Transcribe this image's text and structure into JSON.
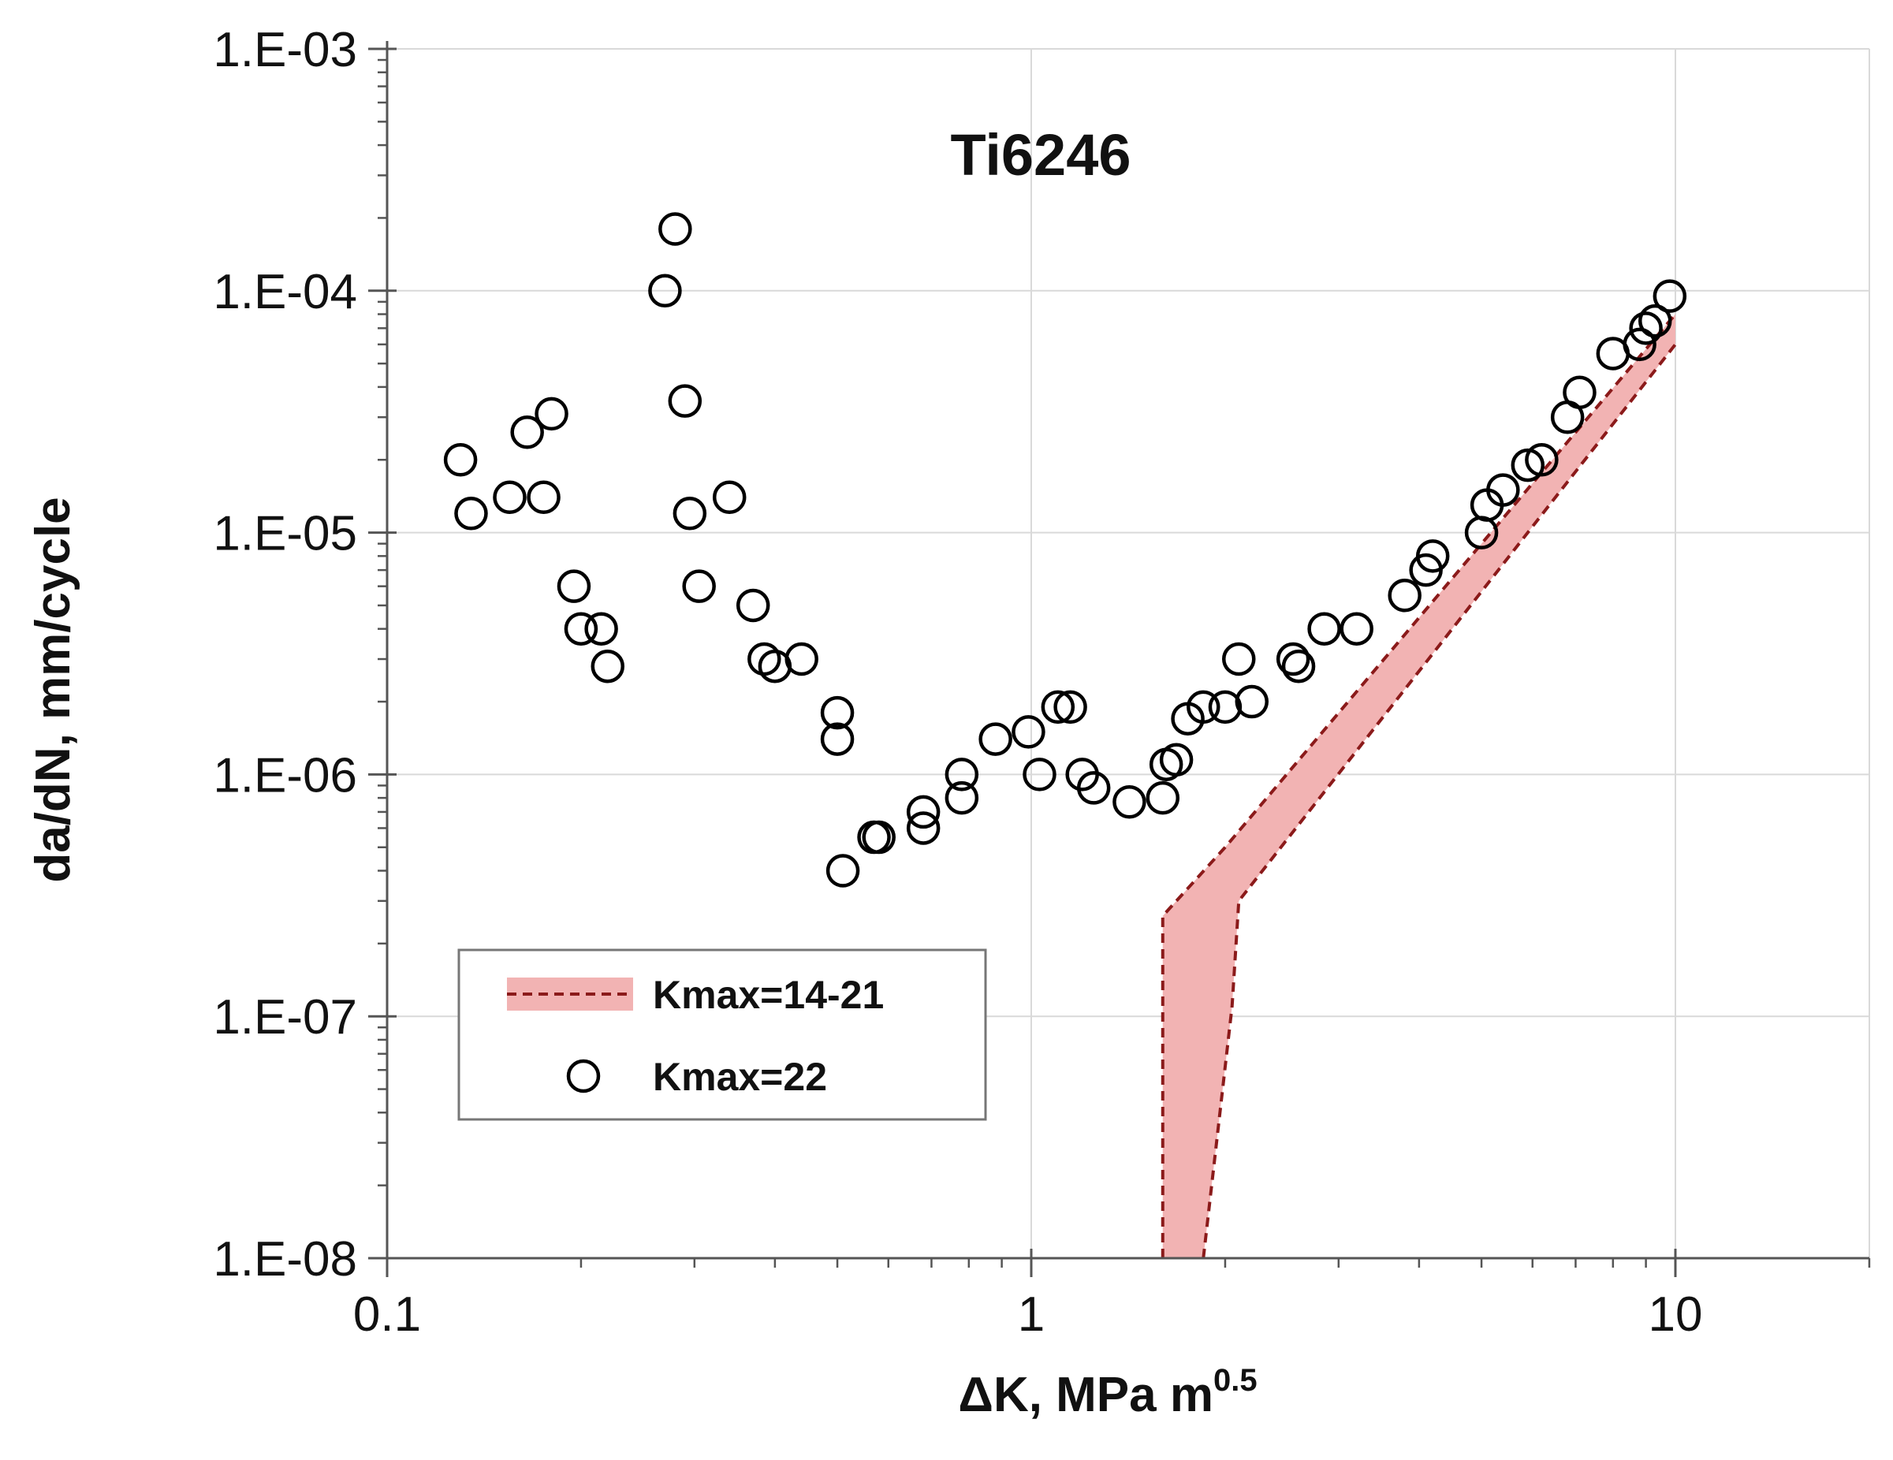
{
  "chart_data": {
    "type": "scatter",
    "title": "Ti6246",
    "xlabel": "ΔK, MPa m",
    "xlabel_superscript": "0.5",
    "ylabel": "da/dN, mm/cycle",
    "xscale": "log",
    "yscale": "log",
    "xlim": [
      0.1,
      20
    ],
    "ylim": [
      1e-08,
      0.001
    ],
    "grid": true,
    "x_ticks": [
      {
        "value": 0.1,
        "label": "0.1"
      },
      {
        "value": 1,
        "label": "1"
      },
      {
        "value": 10,
        "label": "10"
      }
    ],
    "y_ticks": [
      {
        "value": 0.001,
        "label": "1.E-03"
      },
      {
        "value": 0.0001,
        "label": "1.E-04"
      },
      {
        "value": 1e-05,
        "label": "1.E-05"
      },
      {
        "value": 1e-06,
        "label": "1.E-06"
      },
      {
        "value": 1e-07,
        "label": "1.E-07"
      },
      {
        "value": 1e-08,
        "label": "1.E-08"
      }
    ],
    "legend_position": "lower-left",
    "band": {
      "name": "Kmax=14-21",
      "fill_color": "#f2b3b3",
      "line_color": "#8b1a1a",
      "upper": [
        [
          1.6,
          1e-08
        ],
        [
          1.6,
          2.6e-07
        ],
        [
          2.0,
          5e-07
        ],
        [
          10,
          8e-05
        ]
      ],
      "lower": [
        [
          1.85,
          1e-08
        ],
        [
          2.05,
          1.1e-07
        ],
        [
          2.1,
          3e-07
        ],
        [
          10,
          6e-05
        ]
      ]
    },
    "series": [
      {
        "name": "Kmax=22",
        "marker": "open-circle",
        "color": "#000000",
        "points": [
          [
            0.13,
            2e-05
          ],
          [
            0.135,
            1.2e-05
          ],
          [
            0.155,
            1.4e-05
          ],
          [
            0.165,
            2.6e-05
          ],
          [
            0.175,
            1.4e-05
          ],
          [
            0.18,
            3.1e-05
          ],
          [
            0.195,
            6e-06
          ],
          [
            0.2,
            4e-06
          ],
          [
            0.215,
            4e-06
          ],
          [
            0.22,
            2.8e-06
          ],
          [
            0.27,
            0.0001
          ],
          [
            0.28,
            0.00018
          ],
          [
            0.29,
            3.5e-05
          ],
          [
            0.295,
            1.2e-05
          ],
          [
            0.305,
            6e-06
          ],
          [
            0.34,
            1.4e-05
          ],
          [
            0.37,
            5e-06
          ],
          [
            0.385,
            3e-06
          ],
          [
            0.4,
            2.8e-06
          ],
          [
            0.44,
            3e-06
          ],
          [
            0.5,
            1.8e-06
          ],
          [
            0.5,
            1.4e-06
          ],
          [
            0.51,
            4e-07
          ],
          [
            0.57,
            5.5e-07
          ],
          [
            0.58,
            5.5e-07
          ],
          [
            0.68,
            7e-07
          ],
          [
            0.68,
            6e-07
          ],
          [
            0.78,
            1e-06
          ],
          [
            0.78,
            8e-07
          ],
          [
            0.88,
            1.4e-06
          ],
          [
            0.99,
            1.5e-06
          ],
          [
            1.03,
            1e-06
          ],
          [
            1.1,
            1.9e-06
          ],
          [
            1.15,
            1.9e-06
          ],
          [
            1.2,
            1e-06
          ],
          [
            1.25,
            8.8e-07
          ],
          [
            1.42,
            7.7e-07
          ],
          [
            1.6,
            8e-07
          ],
          [
            1.62,
            1.1e-06
          ],
          [
            1.68,
            1.15e-06
          ],
          [
            1.75,
            1.7e-06
          ],
          [
            1.85,
            1.9e-06
          ],
          [
            2.0,
            1.9e-06
          ],
          [
            2.1,
            3e-06
          ],
          [
            2.2,
            2e-06
          ],
          [
            2.55,
            3e-06
          ],
          [
            2.6,
            2.8e-06
          ],
          [
            2.85,
            4e-06
          ],
          [
            3.2,
            4e-06
          ],
          [
            3.8,
            5.5e-06
          ],
          [
            4.1,
            7e-06
          ],
          [
            4.2,
            8e-06
          ],
          [
            5.0,
            1e-05
          ],
          [
            5.1,
            1.3e-05
          ],
          [
            5.4,
            1.5e-05
          ],
          [
            5.9,
            1.9e-05
          ],
          [
            6.2,
            2e-05
          ],
          [
            6.8,
            3e-05
          ],
          [
            7.1,
            3.8e-05
          ],
          [
            8.0,
            5.5e-05
          ],
          [
            8.8,
            6e-05
          ],
          [
            9.0,
            7e-05
          ],
          [
            9.3,
            7.5e-05
          ],
          [
            9.8,
            9.5e-05
          ]
        ]
      }
    ]
  }
}
